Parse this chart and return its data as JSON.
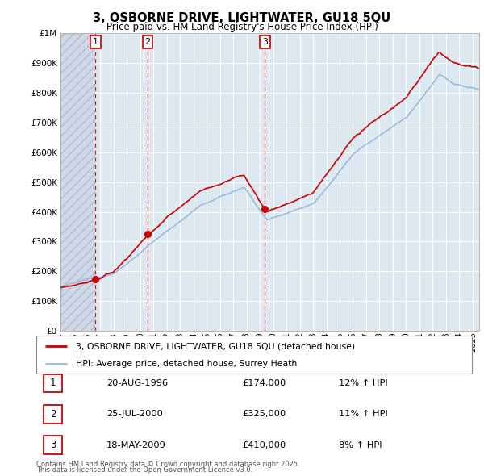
{
  "title": "3, OSBORNE DRIVE, LIGHTWATER, GU18 5QU",
  "subtitle": "Price paid vs. HM Land Registry's House Price Index (HPI)",
  "x_start_year": 1994,
  "x_end_year": 2025,
  "y_min": 0,
  "y_max": 1000000,
  "y_ticks": [
    0,
    100000,
    200000,
    300000,
    400000,
    500000,
    600000,
    700000,
    800000,
    900000,
    1000000
  ],
  "y_tick_labels": [
    "£0",
    "£100K",
    "£200K",
    "£300K",
    "£400K",
    "£500K",
    "£600K",
    "£700K",
    "£800K",
    "£900K",
    "£1M"
  ],
  "transactions": [
    {
      "num": 1,
      "date": "20-AUG-1996",
      "year": 1996.63,
      "price": 174000,
      "pct": "12%",
      "dir": "↑"
    },
    {
      "num": 2,
      "date": "25-JUL-2000",
      "year": 2000.56,
      "price": 325000,
      "pct": "11%",
      "dir": "↑"
    },
    {
      "num": 3,
      "date": "18-MAY-2009",
      "year": 2009.38,
      "price": 410000,
      "pct": "8%",
      "dir": "↑"
    }
  ],
  "legend_label_red": "3, OSBORNE DRIVE, LIGHTWATER, GU18 5QU (detached house)",
  "legend_label_blue": "HPI: Average price, detached house, Surrey Heath",
  "footer_line1": "Contains HM Land Registry data © Crown copyright and database right 2025.",
  "footer_line2": "This data is licensed under the Open Government Licence v3.0.",
  "red_color": "#cc0000",
  "blue_color": "#99bbdd",
  "grid_color": "#cccccc",
  "bg_chart": "#dde8f0",
  "bg_hatch": "#d0d8e8"
}
